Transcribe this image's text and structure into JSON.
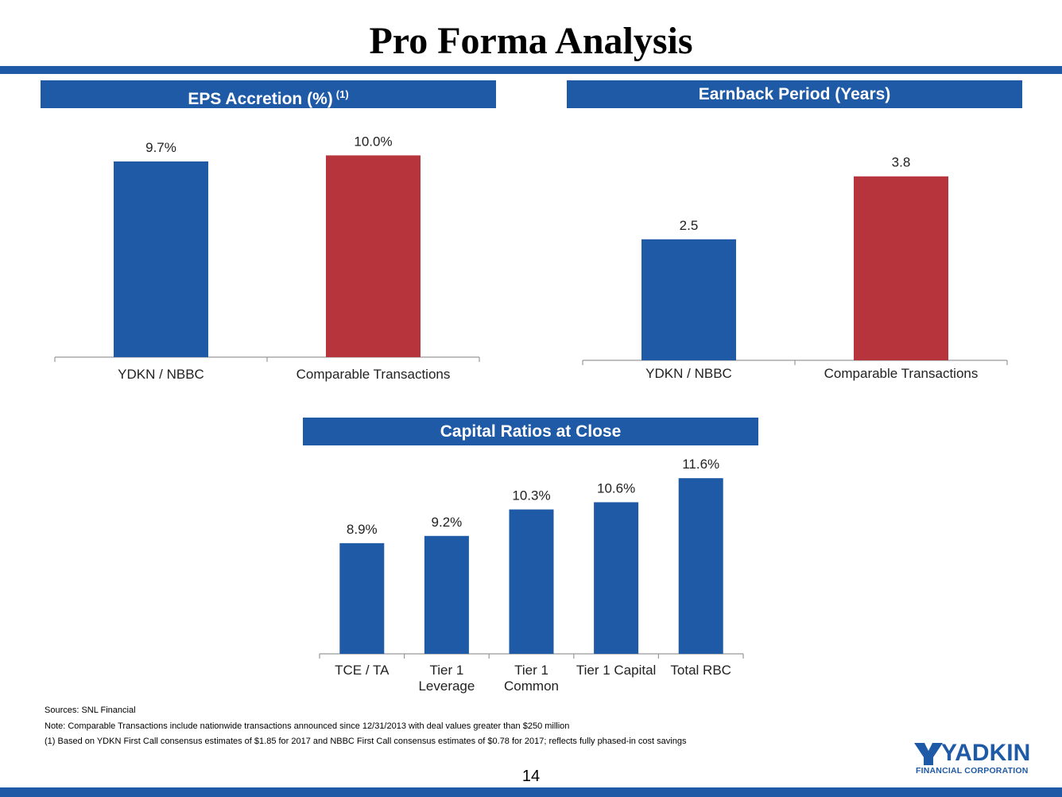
{
  "page": {
    "title": "Pro Forma Analysis",
    "page_number": "14"
  },
  "headers": {
    "eps": "EPS Accretion (%)",
    "eps_sup": "(1)",
    "earnback": "Earnback Period (Years)",
    "capital": "Capital Ratios at Close"
  },
  "colors": {
    "blue": "#1f5aa6",
    "red": "#b8343d",
    "axis": "#999999"
  },
  "chart_data": [
    {
      "id": "eps",
      "type": "bar",
      "title": "EPS Accretion (%) (1)",
      "categories": [
        "YDKN / NBBC",
        "Comparable Transactions"
      ],
      "values": [
        9.7,
        10.0
      ],
      "data_labels": [
        "9.7%",
        "10.0%"
      ],
      "bar_colors": [
        "#1f5aa6",
        "#b8343d"
      ],
      "ylim": [
        0,
        11.0
      ]
    },
    {
      "id": "earnback",
      "type": "bar",
      "title": "Earnback Period (Years)",
      "categories": [
        "YDKN / NBBC",
        "Comparable Transactions"
      ],
      "values": [
        2.5,
        3.8
      ],
      "data_labels": [
        "2.5",
        "3.8"
      ],
      "bar_colors": [
        "#1f5aa6",
        "#b8343d"
      ],
      "ylim": [
        0,
        4.65
      ]
    },
    {
      "id": "capital",
      "type": "bar",
      "title": "Capital Ratios at Close",
      "categories": [
        "TCE / TA",
        "Tier 1 Leverage",
        "Tier 1 Common",
        "Tier 1 Capital",
        "Total RBC"
      ],
      "category_lines": [
        [
          "TCE / TA"
        ],
        [
          "Tier 1",
          "Leverage"
        ],
        [
          "Tier 1",
          "Common"
        ],
        [
          "Tier 1 Capital"
        ],
        [
          "Total RBC"
        ]
      ],
      "values": [
        8.9,
        9.2,
        10.3,
        10.6,
        11.6
      ],
      "data_labels": [
        "8.9%",
        "9.2%",
        "10.3%",
        "10.6%",
        "11.6%"
      ],
      "bar_colors": [
        "#1f5aa6",
        "#1f5aa6",
        "#1f5aa6",
        "#1f5aa6",
        "#1f5aa6"
      ],
      "ylim": [
        4.3,
        12.3
      ]
    }
  ],
  "footnotes": {
    "sources": "Sources: SNL Financial",
    "note": "Note: Comparable Transactions include nationwide transactions announced since 12/31/2013 with deal values greater than $250 million",
    "fn1": "(1) Based on YDKN First Call consensus estimates of $1.85 for 2017 and NBBC First Call consensus estimates of $0.78 for 2017; reflects fully phased-in cost savings"
  },
  "logo": {
    "word": "YADKIN",
    "sub": "FINANCIAL CORPORATION"
  }
}
